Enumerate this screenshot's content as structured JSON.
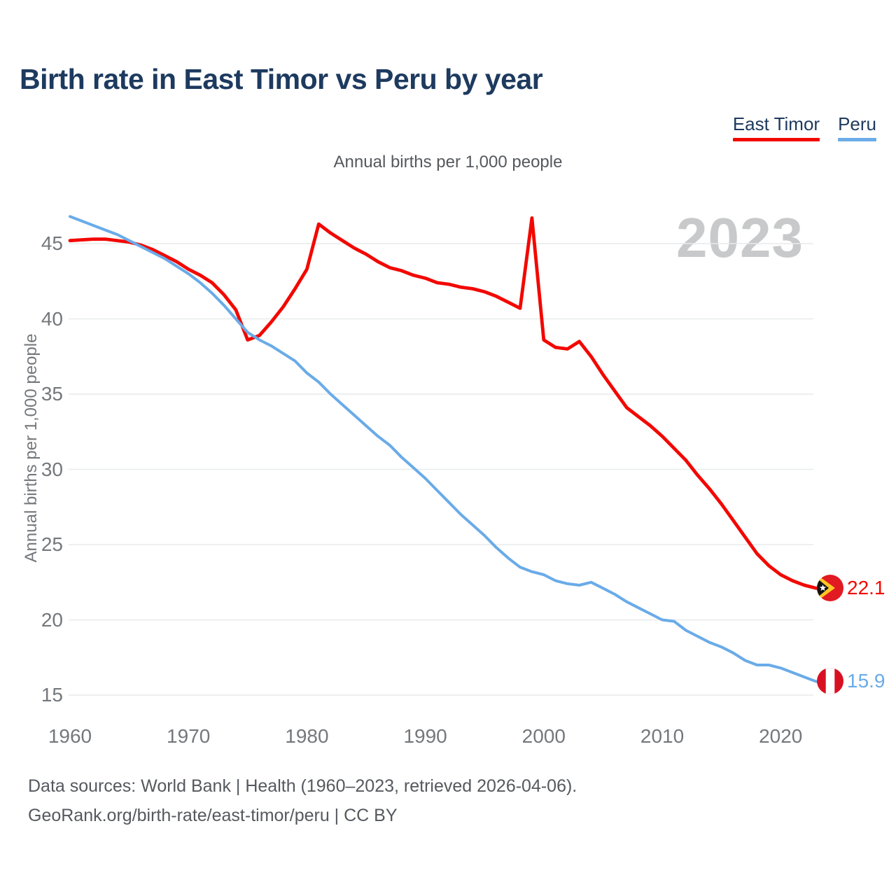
{
  "header": {
    "title": "Birth rate in East Timor vs Peru by year"
  },
  "legend": {
    "items": [
      {
        "label": "East Timor",
        "color": "#f20800"
      },
      {
        "label": "Peru",
        "color": "#6aabe8"
      }
    ]
  },
  "watermark": "2023",
  "chart_data": {
    "type": "line",
    "title": "Annual births per 1,000 people",
    "xlabel": "",
    "ylabel": "Annual births per 1,000 people",
    "xlim": [
      1960,
      2023
    ],
    "ylim": [
      14,
      48
    ],
    "x_ticks": [
      1960,
      1970,
      1980,
      1990,
      2000,
      2010,
      2020
    ],
    "y_ticks": [
      45,
      40,
      35,
      30,
      25,
      20,
      15
    ],
    "grid": "horizontal",
    "legend_position": "top-right",
    "years": [
      1960,
      1961,
      1962,
      1963,
      1964,
      1965,
      1966,
      1967,
      1968,
      1969,
      1970,
      1971,
      1972,
      1973,
      1974,
      1975,
      1976,
      1977,
      1978,
      1979,
      1980,
      1981,
      1982,
      1983,
      1984,
      1985,
      1986,
      1987,
      1988,
      1989,
      1990,
      1991,
      1992,
      1993,
      1994,
      1995,
      1996,
      1997,
      1998,
      1999,
      2000,
      2001,
      2002,
      2003,
      2004,
      2005,
      2006,
      2007,
      2008,
      2009,
      2010,
      2011,
      2012,
      2013,
      2014,
      2015,
      2016,
      2017,
      2018,
      2019,
      2020,
      2021,
      2022,
      2023
    ],
    "series": [
      {
        "name": "East Timor",
        "color": "#f20800",
        "end_label": "22.1",
        "values": [
          45.2,
          45.25,
          45.3,
          45.3,
          45.2,
          45.1,
          44.9,
          44.6,
          44.2,
          43.8,
          43.3,
          42.9,
          42.4,
          41.6,
          40.6,
          38.6,
          38.9,
          39.8,
          40.8,
          42.0,
          43.3,
          46.3,
          45.7,
          45.2,
          44.7,
          44.3,
          43.8,
          43.4,
          43.2,
          42.9,
          42.7,
          42.4,
          42.3,
          42.1,
          42.0,
          41.8,
          41.5,
          41.1,
          40.7,
          46.7,
          38.6,
          38.1,
          38.0,
          38.5,
          37.5,
          36.3,
          35.2,
          34.1,
          33.5,
          32.9,
          32.2,
          31.4,
          30.6,
          29.6,
          28.7,
          27.7,
          26.6,
          25.5,
          24.4,
          23.6,
          23.0,
          22.6,
          22.3,
          22.1
        ]
      },
      {
        "name": "Peru",
        "color": "#6aabe8",
        "end_label": "15.9",
        "values": [
          46.8,
          46.5,
          46.2,
          45.9,
          45.6,
          45.2,
          44.8,
          44.4,
          44.0,
          43.5,
          43.0,
          42.4,
          41.7,
          40.9,
          40.0,
          39.1,
          38.6,
          38.2,
          37.7,
          37.2,
          36.4,
          35.8,
          35.0,
          34.3,
          33.6,
          32.9,
          32.2,
          31.6,
          30.8,
          30.1,
          29.4,
          28.6,
          27.8,
          27.0,
          26.3,
          25.6,
          24.8,
          24.1,
          23.5,
          23.2,
          23.0,
          22.6,
          22.4,
          22.3,
          22.5,
          22.1,
          21.7,
          21.2,
          20.8,
          20.4,
          20.0,
          19.9,
          19.3,
          18.9,
          18.5,
          18.2,
          17.8,
          17.3,
          17.0,
          17.0,
          16.8,
          16.5,
          16.2,
          15.9
        ]
      }
    ]
  },
  "icons": {
    "east_timor": "east-timor-flag-icon",
    "peru": "peru-flag-icon"
  },
  "footer": {
    "line1": "Data sources: World Bank | Health (1960–2023, retrieved 2026-04-06).",
    "line2": "GeoRank.org/birth-rate/east-timor/peru | CC BY"
  }
}
